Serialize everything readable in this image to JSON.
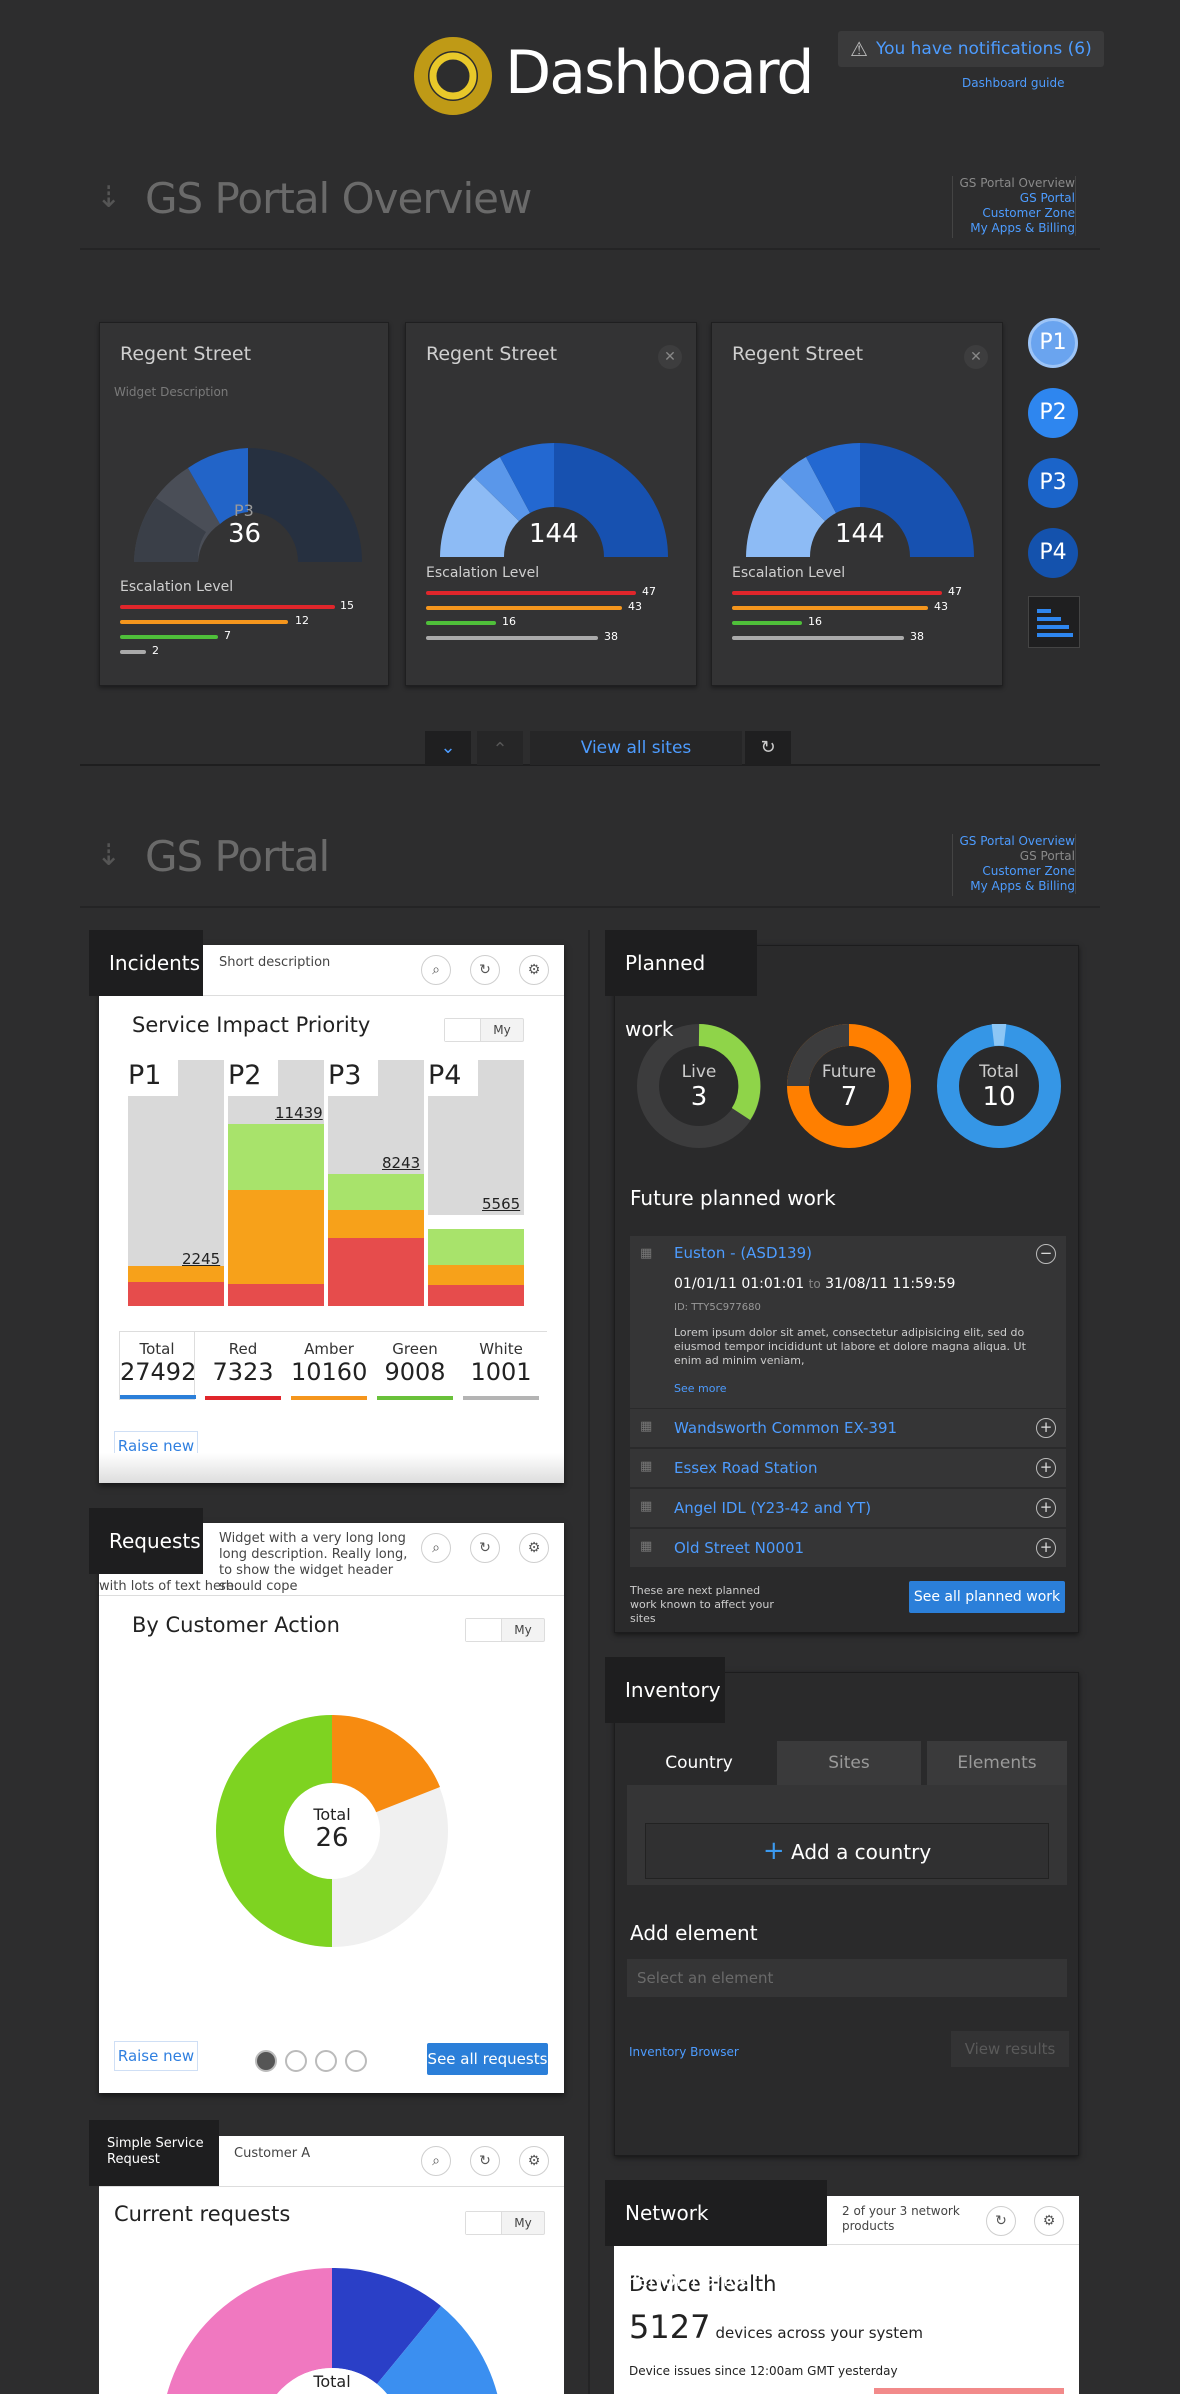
{
  "header": {
    "title": "Dashboard",
    "notification": "You have notifications (6)",
    "guide_link": "Dashboard guide"
  },
  "overview": {
    "title": "GS Portal Overview",
    "crumbs": [
      "GS Portal Overview",
      "GS Portal",
      "Customer Zone",
      "My Apps & Billing"
    ],
    "cards": [
      {
        "title": "Regent Street",
        "description": "Widget Description",
        "center_label": "P3",
        "value": "36",
        "esc_label": "Escalation Level",
        "esc": [
          "15",
          "12",
          "7",
          "2"
        ]
      },
      {
        "title": "Regent Street",
        "value": "144",
        "esc_label": "Escalation Level",
        "esc": [
          "47",
          "43",
          "16",
          "38"
        ]
      },
      {
        "title": "Regent Street",
        "value": "144",
        "esc_label": "Escalation Level",
        "esc": [
          "47",
          "43",
          "16",
          "38"
        ]
      }
    ],
    "priorities": [
      "P1",
      "P2",
      "P3",
      "P4"
    ],
    "view_all": "View all sites"
  },
  "portal": {
    "title": "GS Portal",
    "crumbs": [
      "GS Portal Overview",
      "GS Portal",
      "Customer Zone",
      "My Apps & Billing"
    ]
  },
  "incidents": {
    "title": "Incidents",
    "desc": "Short description",
    "heading": "Service Impact Priority",
    "toggle": "My",
    "bars": [
      {
        "label": "P1",
        "value": "2245"
      },
      {
        "label": "P2",
        "value": "11439"
      },
      {
        "label": "P3",
        "value": "8243"
      },
      {
        "label": "P4",
        "value": "5565"
      }
    ],
    "stats": [
      {
        "cap": "Total",
        "num": "27492",
        "color": "#2b7fd9"
      },
      {
        "cap": "Red",
        "num": "7323",
        "color": "#e0262b"
      },
      {
        "cap": "Amber",
        "num": "10160",
        "color": "#f5961d"
      },
      {
        "cap": "Green",
        "num": "9008",
        "color": "#69c13a"
      },
      {
        "cap": "White",
        "num": "1001",
        "color": "#b4b4b4"
      }
    ],
    "raise": "Raise new"
  },
  "requests": {
    "title": "Requests",
    "desc": "Widget with a very long long long description. Really long, to show the widget header should cope",
    "desc2": "with lots of text here.",
    "heading": "By Customer Action",
    "toggle": "My",
    "total_label": "Total",
    "total": "26",
    "raise": "Raise new",
    "see_all": "See all requests"
  },
  "simple": {
    "title_line1": "Simple Service",
    "title_line2": "Request",
    "desc": "Customer A",
    "heading": "Current requests",
    "toggle": "My",
    "total_label": "Total"
  },
  "planned": {
    "title": "Planned work",
    "donuts": [
      {
        "label": "Live",
        "value": "3"
      },
      {
        "label": "Future",
        "value": "7"
      },
      {
        "label": "Total",
        "value": "10"
      }
    ],
    "future_title": "Future planned work",
    "expanded": {
      "name": "Euston - (ASD139)",
      "from": "01/01/11 01:01:01",
      "to_word": "to",
      "to": "31/08/11 11:59:59",
      "id": "ID: TTY5C977680",
      "body": "Lorem ipsum dolor sit amet, consectetur adipisicing elit, sed do eiusmod tempor incididunt ut labore et dolore magna aliqua. Ut enim ad minim veniam,",
      "see_more": "See more"
    },
    "rows": [
      "Wandsworth Common EX-391",
      "Essex Road Station",
      "Angel IDL (Y23-42 and YT)",
      "Old Street N0001"
    ],
    "note": "These are next planned work known to affect your sites",
    "see_all": "See all planned work"
  },
  "inventory": {
    "title": "Inventory",
    "tabs": [
      "Country",
      "Sites",
      "Elements"
    ],
    "add_country": "Add a country",
    "add_element": "Add element",
    "select_placeholder": "Select an element",
    "browser": "Inventory Browser",
    "view_results": "View results"
  },
  "network": {
    "title": "Network Performance",
    "desc": "2 of your 3 network products",
    "heading": "Device Health",
    "count": "5127",
    "count_suffix": "devices across your system",
    "since": "Device issues since 12:00am GMT yesterday"
  }
}
